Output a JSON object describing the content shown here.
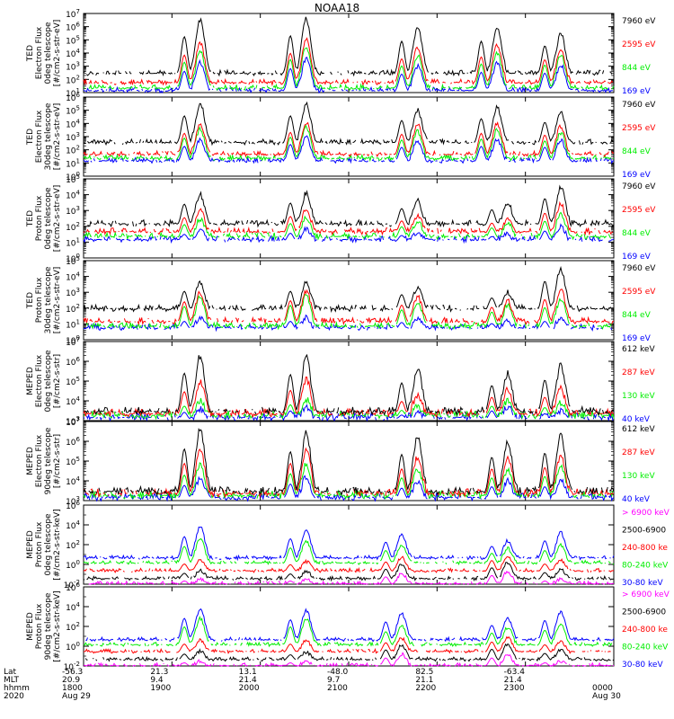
{
  "title": "NOAA18",
  "colors": {
    "blue": "#0000ff",
    "red": "#ff0000",
    "green": "#00ee00",
    "black": "#000000",
    "magenta": "#ff00ff"
  },
  "footer": {
    "row_labels": [
      "Lat",
      "MLT",
      "hhmm",
      "2020"
    ],
    "ticks": [
      {
        "lat": "-56.3",
        "mlt": "20.9",
        "hhmm": "1800",
        "date": "Aug 29"
      },
      {
        "lat": "21.3",
        "mlt": "9.4",
        "hhmm": "1900",
        "date": ""
      },
      {
        "lat": "13.1",
        "mlt": "21.4",
        "hhmm": "2000",
        "date": ""
      },
      {
        "lat": "-48.0",
        "mlt": "9.7",
        "hhmm": "2100",
        "date": ""
      },
      {
        "lat": "82.5",
        "mlt": "21.1",
        "hhmm": "2200",
        "date": ""
      },
      {
        "lat": "-63.4",
        "mlt": "21.4",
        "hhmm": "2300",
        "date": ""
      },
      {
        "lat": "",
        "mlt": "",
        "hhmm": "0000",
        "date": "Aug 30"
      }
    ]
  },
  "chart_data": [
    {
      "type": "line",
      "id": "ted_e_0",
      "ylabel": [
        "TED",
        "Electron Flux",
        "0deg telescope",
        "[#/cm2-s-str-eV]"
      ],
      "ylim_exp": [
        1,
        7
      ],
      "tick_exps": [
        1,
        2,
        3,
        4,
        5,
        6,
        7
      ],
      "legend": [
        {
          "label": "7960 eV",
          "color": "black"
        },
        {
          "label": "2595 eV",
          "color": "red"
        },
        {
          "label": "844 eV",
          "color": "green"
        },
        {
          "label": "169 eV",
          "color": "blue"
        }
      ],
      "passes": [
        {
          "t": 0.22,
          "pk": [
            6.5,
            4.8,
            4.2,
            3.3
          ]
        },
        {
          "t": 0.42,
          "pk": [
            6.6,
            5.0,
            4.5,
            3.6
          ]
        },
        {
          "t": 0.63,
          "pk": [
            6.0,
            4.4,
            3.8,
            3.0
          ]
        },
        {
          "t": 0.78,
          "pk": [
            6.0,
            4.6,
            4.0,
            3.2
          ]
        },
        {
          "t": 0.9,
          "pk": [
            5.5,
            4.3,
            3.9,
            3.1
          ]
        }
      ],
      "bg": [
        2.3,
        1.6,
        1.2,
        1.0
      ]
    },
    {
      "type": "line",
      "id": "ted_e_30",
      "ylabel": [
        "TED",
        "Electron Flux",
        "30deg telescope",
        "[#/cm2-s-str-eV]"
      ],
      "ylim_exp": [
        0,
        6
      ],
      "tick_exps": [
        0,
        1,
        2,
        3,
        4,
        5,
        6
      ],
      "legend": [
        {
          "label": "7960 eV",
          "color": "black"
        },
        {
          "label": "2595 eV",
          "color": "red"
        },
        {
          "label": "844 eV",
          "color": "green"
        },
        {
          "label": "169 eV",
          "color": "blue"
        }
      ],
      "passes": [
        {
          "t": 0.22,
          "pk": [
            5.5,
            4.0,
            3.6,
            2.8
          ]
        },
        {
          "t": 0.42,
          "pk": [
            5.5,
            4.1,
            3.7,
            3.0
          ]
        },
        {
          "t": 0.63,
          "pk": [
            5.0,
            3.9,
            3.4,
            2.7
          ]
        },
        {
          "t": 0.78,
          "pk": [
            5.2,
            4.0,
            3.5,
            2.8
          ]
        },
        {
          "t": 0.9,
          "pk": [
            4.8,
            3.8,
            3.3,
            2.7
          ]
        }
      ],
      "bg": [
        2.4,
        1.5,
        1.2,
        1.0
      ]
    },
    {
      "type": "line",
      "id": "ted_p_0",
      "ylabel": [
        "TED",
        "Proton Flux",
        "0deg telescope",
        "[#/cm2-s-str-eV]"
      ],
      "ylim_exp": [
        0,
        5
      ],
      "tick_exps": [
        0,
        1,
        2,
        3,
        4,
        5
      ],
      "legend": [
        {
          "label": "7960 eV",
          "color": "black"
        },
        {
          "label": "2595 eV",
          "color": "red"
        },
        {
          "label": "844 eV",
          "color": "green"
        },
        {
          "label": "169 eV",
          "color": "blue"
        }
      ],
      "passes": [
        {
          "t": 0.22,
          "pk": [
            4.0,
            3.0,
            2.5,
            1.7
          ]
        },
        {
          "t": 0.42,
          "pk": [
            4.1,
            3.1,
            2.6,
            1.8
          ]
        },
        {
          "t": 0.63,
          "pk": [
            3.6,
            2.7,
            2.3,
            1.6
          ]
        },
        {
          "t": 0.8,
          "pk": [
            3.5,
            2.5,
            2.2,
            1.5
          ]
        },
        {
          "t": 0.9,
          "pk": [
            4.5,
            3.4,
            2.8,
            2.0
          ]
        }
      ],
      "bg": [
        2.0,
        1.5,
        1.2,
        1.0
      ]
    },
    {
      "type": "line",
      "id": "ted_p_30",
      "ylabel": [
        "TED",
        "Proton Flux",
        "30deg telescope",
        "[#/cm2-s-str-eV]"
      ],
      "ylim_exp": [
        0,
        5
      ],
      "tick_exps": [
        0,
        1,
        2,
        3,
        4,
        5
      ],
      "legend": [
        {
          "label": "7960 eV",
          "color": "black"
        },
        {
          "label": "2595 eV",
          "color": "red"
        },
        {
          "label": "844 eV",
          "color": "green"
        },
        {
          "label": "169 eV",
          "color": "blue"
        }
      ],
      "passes": [
        {
          "t": 0.22,
          "pk": [
            3.6,
            3.0,
            2.7,
            1.4
          ]
        },
        {
          "t": 0.42,
          "pk": [
            3.6,
            3.1,
            2.8,
            1.4
          ]
        },
        {
          "t": 0.63,
          "pk": [
            3.3,
            2.7,
            2.4,
            1.3
          ]
        },
        {
          "t": 0.8,
          "pk": [
            3.0,
            2.5,
            2.2,
            1.2
          ]
        },
        {
          "t": 0.9,
          "pk": [
            4.5,
            3.2,
            2.6,
            1.4
          ]
        }
      ],
      "bg": [
        1.8,
        1.0,
        0.7,
        0.6
      ]
    },
    {
      "type": "line",
      "id": "meped_e_0",
      "ylabel": [
        "MEPED",
        "Electron Flux",
        "0deg telescope",
        "[#/cm2-s-str]"
      ],
      "ylim_exp": [
        3,
        7
      ],
      "tick_exps": [
        3,
        4,
        5,
        6,
        7
      ],
      "legend": [
        {
          "label": "612 keV",
          "color": "black"
        },
        {
          "label": "287 keV",
          "color": "red"
        },
        {
          "label": "130 keV",
          "color": "green"
        },
        {
          "label": "40 keV",
          "color": "blue"
        }
      ],
      "passes": [
        {
          "t": 0.22,
          "pk": [
            6.3,
            5.0,
            4.0,
            3.6
          ]
        },
        {
          "t": 0.42,
          "pk": [
            6.2,
            5.1,
            4.1,
            3.7
          ]
        },
        {
          "t": 0.63,
          "pk": [
            5.6,
            4.3,
            3.7,
            3.4
          ]
        },
        {
          "t": 0.8,
          "pk": [
            5.4,
            4.6,
            4.0,
            3.7
          ]
        },
        {
          "t": 0.9,
          "pk": [
            5.8,
            4.6,
            3.9,
            3.5
          ]
        }
      ],
      "bg": [
        3.3,
        3.2,
        3.1,
        3.0
      ]
    },
    {
      "type": "line",
      "id": "meped_e_90",
      "ylabel": [
        "MEPED",
        "Electron Flux",
        "90deg telescope",
        "[#/cm2-s-str]"
      ],
      "ylim_exp": [
        3,
        7
      ],
      "tick_exps": [
        3,
        4,
        5,
        6,
        7
      ],
      "legend": [
        {
          "label": "612 keV",
          "color": "black"
        },
        {
          "label": "287 keV",
          "color": "red"
        },
        {
          "label": "130 keV",
          "color": "green"
        },
        {
          "label": "40 keV",
          "color": "blue"
        }
      ],
      "passes": [
        {
          "t": 0.22,
          "pk": [
            6.6,
            5.6,
            4.8,
            4.1
          ]
        },
        {
          "t": 0.42,
          "pk": [
            6.4,
            5.6,
            4.9,
            4.2
          ]
        },
        {
          "t": 0.63,
          "pk": [
            6.2,
            5.2,
            4.6,
            3.9
          ]
        },
        {
          "t": 0.8,
          "pk": [
            6.0,
            5.2,
            4.6,
            4.0
          ]
        },
        {
          "t": 0.9,
          "pk": [
            6.3,
            5.3,
            4.7,
            4.0
          ]
        }
      ],
      "bg": [
        3.3,
        3.2,
        3.1,
        3.0
      ]
    },
    {
      "type": "line",
      "id": "meped_p_0",
      "ylabel": [
        "MEPED",
        "Proton Flux",
        "0deg telescope",
        "[#/cm2-s-str-keV]"
      ],
      "ylim_exp": [
        -2,
        6
      ],
      "tick_exps": [
        -2,
        0,
        2,
        4,
        6
      ],
      "legend": [
        {
          "label": "> 6900 keV",
          "color": "magenta"
        },
        {
          "label": "2500-6900",
          "color": "black"
        },
        {
          "label": "240-800 ke",
          "color": "red"
        },
        {
          "label": "80-240 keV",
          "color": "green"
        },
        {
          "label": "30-80 keV",
          "color": "blue"
        }
      ],
      "passes": [
        {
          "t": 0.22,
          "pk": [
            -1.5,
            -0.6,
            0.4,
            2.6,
            3.8
          ]
        },
        {
          "t": 0.42,
          "pk": [
            -1.5,
            -0.7,
            0.3,
            2.4,
            3.5
          ]
        },
        {
          "t": 0.6,
          "pk": [
            -0.9,
            0.0,
            0.7,
            2.0,
            3.0
          ]
        },
        {
          "t": 0.8,
          "pk": [
            -0.7,
            0.2,
            0.9,
            1.6,
            2.4
          ]
        },
        {
          "t": 0.9,
          "pk": [
            -1.5,
            -0.5,
            0.4,
            2.0,
            3.2
          ]
        }
      ],
      "bg": [
        -2.1,
        -1.6,
        -0.8,
        0.0,
        0.5
      ]
    },
    {
      "type": "line",
      "id": "meped_p_90",
      "ylabel": [
        "MEPED",
        "Proton Flux",
        "90deg telescope",
        "[#/cm2-s-str-keV]"
      ],
      "ylim_exp": [
        -2,
        6
      ],
      "tick_exps": [
        -2,
        0,
        2,
        4,
        6
      ],
      "legend": [
        {
          "label": "> 6900 keV",
          "color": "magenta"
        },
        {
          "label": "2500-6900",
          "color": "black"
        },
        {
          "label": "240-800 ke",
          "color": "red"
        },
        {
          "label": "80-240 keV",
          "color": "green"
        },
        {
          "label": "30-80 keV",
          "color": "blue"
        }
      ],
      "passes": [
        {
          "t": 0.22,
          "pk": [
            -1.5,
            -0.5,
            0.6,
            2.8,
            3.8
          ]
        },
        {
          "t": 0.42,
          "pk": [
            -1.5,
            -0.6,
            0.6,
            2.8,
            3.6
          ]
        },
        {
          "t": 0.6,
          "pk": [
            -0.8,
            0.1,
            0.8,
            2.1,
            3.3
          ]
        },
        {
          "t": 0.8,
          "pk": [
            -0.8,
            0.2,
            0.9,
            1.9,
            2.8
          ]
        },
        {
          "t": 0.9,
          "pk": [
            -1.5,
            -0.4,
            0.5,
            2.3,
            3.5
          ]
        }
      ],
      "bg": [
        -2.1,
        -1.5,
        -0.7,
        0.0,
        0.5
      ]
    }
  ]
}
